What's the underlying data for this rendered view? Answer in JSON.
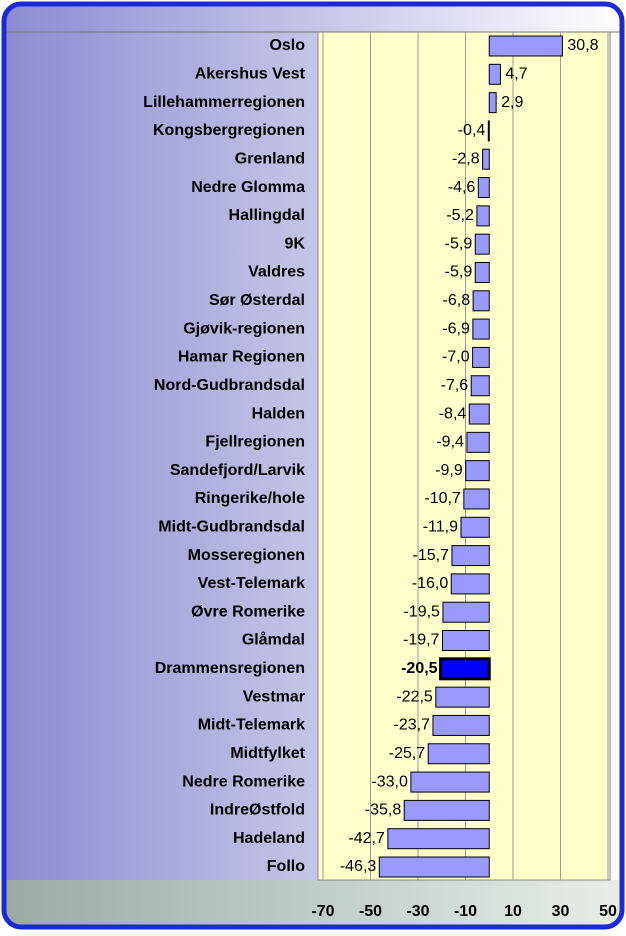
{
  "chart_data": {
    "type": "barh",
    "categories": [
      "Oslo",
      "Akershus Vest",
      "Lillehammerregionen",
      "Kongsbergregionen",
      "Grenland",
      "Nedre Glomma",
      "Hallingdal",
      "9K",
      "Valdres",
      "Sør Østerdal",
      "Gjøvik-regionen",
      "Hamar Regionen",
      "Nord-Gudbrandsdal",
      "Halden",
      "Fjellregionen",
      "Sandefjord/Larvik",
      "Ringerike/hole",
      "Midt-Gudbrandsdal",
      "Mosseregionen",
      "Vest-Telemark",
      "Øvre Romerike",
      "Glåmdal",
      "Drammensregionen",
      "Vestmar",
      "Midt-Telemark",
      "Midtfylket",
      "Nedre Romerike",
      "IndreØstfold",
      "Hadeland",
      "Follo"
    ],
    "values": [
      30.8,
      4.7,
      2.9,
      -0.4,
      -2.8,
      -4.6,
      -5.2,
      -5.9,
      -5.9,
      -6.8,
      -6.9,
      -7.0,
      -7.6,
      -8.4,
      -9.4,
      -9.9,
      -10.7,
      -11.9,
      -15.7,
      -16.0,
      -19.5,
      -19.7,
      -20.5,
      -22.5,
      -23.7,
      -25.7,
      -33.0,
      -35.8,
      -42.7,
      -46.3
    ],
    "value_labels": [
      "30,8",
      "4,7",
      "2,9",
      "-0,4",
      "-2,8",
      "-4,6",
      "-5,2",
      "-5,9",
      "-5,9",
      "-6,8",
      "-6,9",
      "-7,0",
      "-7,6",
      "-8,4",
      "-9,4",
      "-9,9",
      "-10,7",
      "-11,9",
      "-15,7",
      "-16,0",
      "-19,5",
      "-19,7",
      "-20,5",
      "-22,5",
      "-23,7",
      "-25,7",
      "-33,0",
      "-35,8",
      "-42,7",
      "-46,3"
    ],
    "color": "#9999ff",
    "highlight": "Drammensregionen",
    "highlight_color": "#0000ff",
    "xlim": [
      -70,
      50
    ],
    "xticks": [
      -70,
      -50,
      -30,
      -10,
      10,
      30,
      50
    ],
    "grid": true
  }
}
